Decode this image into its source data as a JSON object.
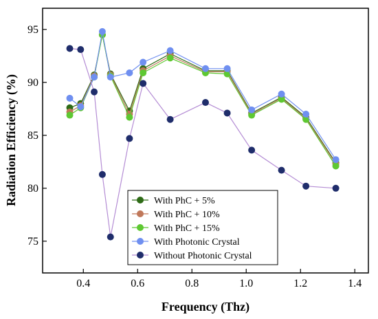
{
  "chart_data": {
    "type": "line",
    "title": "",
    "xlabel": "Frequency (Thz)",
    "ylabel": "Radiation Efficiency (%)",
    "xlim": [
      0.25,
      1.45
    ],
    "ylim": [
      72,
      97
    ],
    "xticks": [
      0.4,
      0.6,
      0.8,
      1.0,
      1.2,
      1.4
    ],
    "xtick_labels": [
      "0.4",
      "0.6",
      "0.8",
      "1.0",
      "1.2",
      "1.4"
    ],
    "yticks": [
      75,
      80,
      85,
      90,
      95
    ],
    "ytick_labels": [
      "75",
      "80",
      "85",
      "90",
      "95"
    ],
    "grid": false,
    "legend_position": "bottom-center",
    "x": [
      0.35,
      0.39,
      0.44,
      0.47,
      0.5,
      0.57,
      0.62,
      0.72,
      0.85,
      0.93,
      1.02,
      1.13,
      1.22,
      1.33
    ],
    "series": [
      {
        "name": "With PhC + 5%",
        "color": "#2e6b16",
        "values": [
          87.6,
          88.0,
          90.7,
          94.5,
          90.8,
          87.3,
          91.3,
          92.7,
          91.1,
          91.1,
          87.1,
          88.6,
          86.7,
          82.4
        ]
      },
      {
        "name": "With PhC + 10%",
        "color": "#c0785a",
        "values": [
          87.2,
          87.8,
          90.6,
          94.5,
          90.7,
          87.0,
          91.1,
          92.5,
          91.0,
          91.0,
          87.0,
          88.5,
          86.6,
          82.3
        ]
      },
      {
        "name": "With PhC + 15%",
        "color": "#5ec832",
        "values": [
          86.9,
          87.6,
          90.5,
          94.5,
          90.6,
          86.7,
          90.9,
          92.3,
          90.9,
          90.8,
          86.9,
          88.4,
          86.5,
          82.1
        ]
      },
      {
        "name": "With Photonic Crystal",
        "color": "#6f8ff0",
        "values": [
          88.5,
          87.7,
          90.5,
          94.8,
          90.5,
          90.9,
          91.9,
          93.0,
          91.3,
          91.3,
          87.4,
          88.9,
          87.0,
          82.7
        ]
      },
      {
        "name": "Without Photonic Crystal",
        "color": "#1f2d6b",
        "line_color": "#b48cd4",
        "values": [
          93.2,
          93.1,
          89.1,
          81.3,
          75.4,
          84.7,
          89.9,
          86.5,
          88.1,
          87.1,
          83.6,
          81.7,
          80.2,
          80.0
        ]
      }
    ]
  }
}
